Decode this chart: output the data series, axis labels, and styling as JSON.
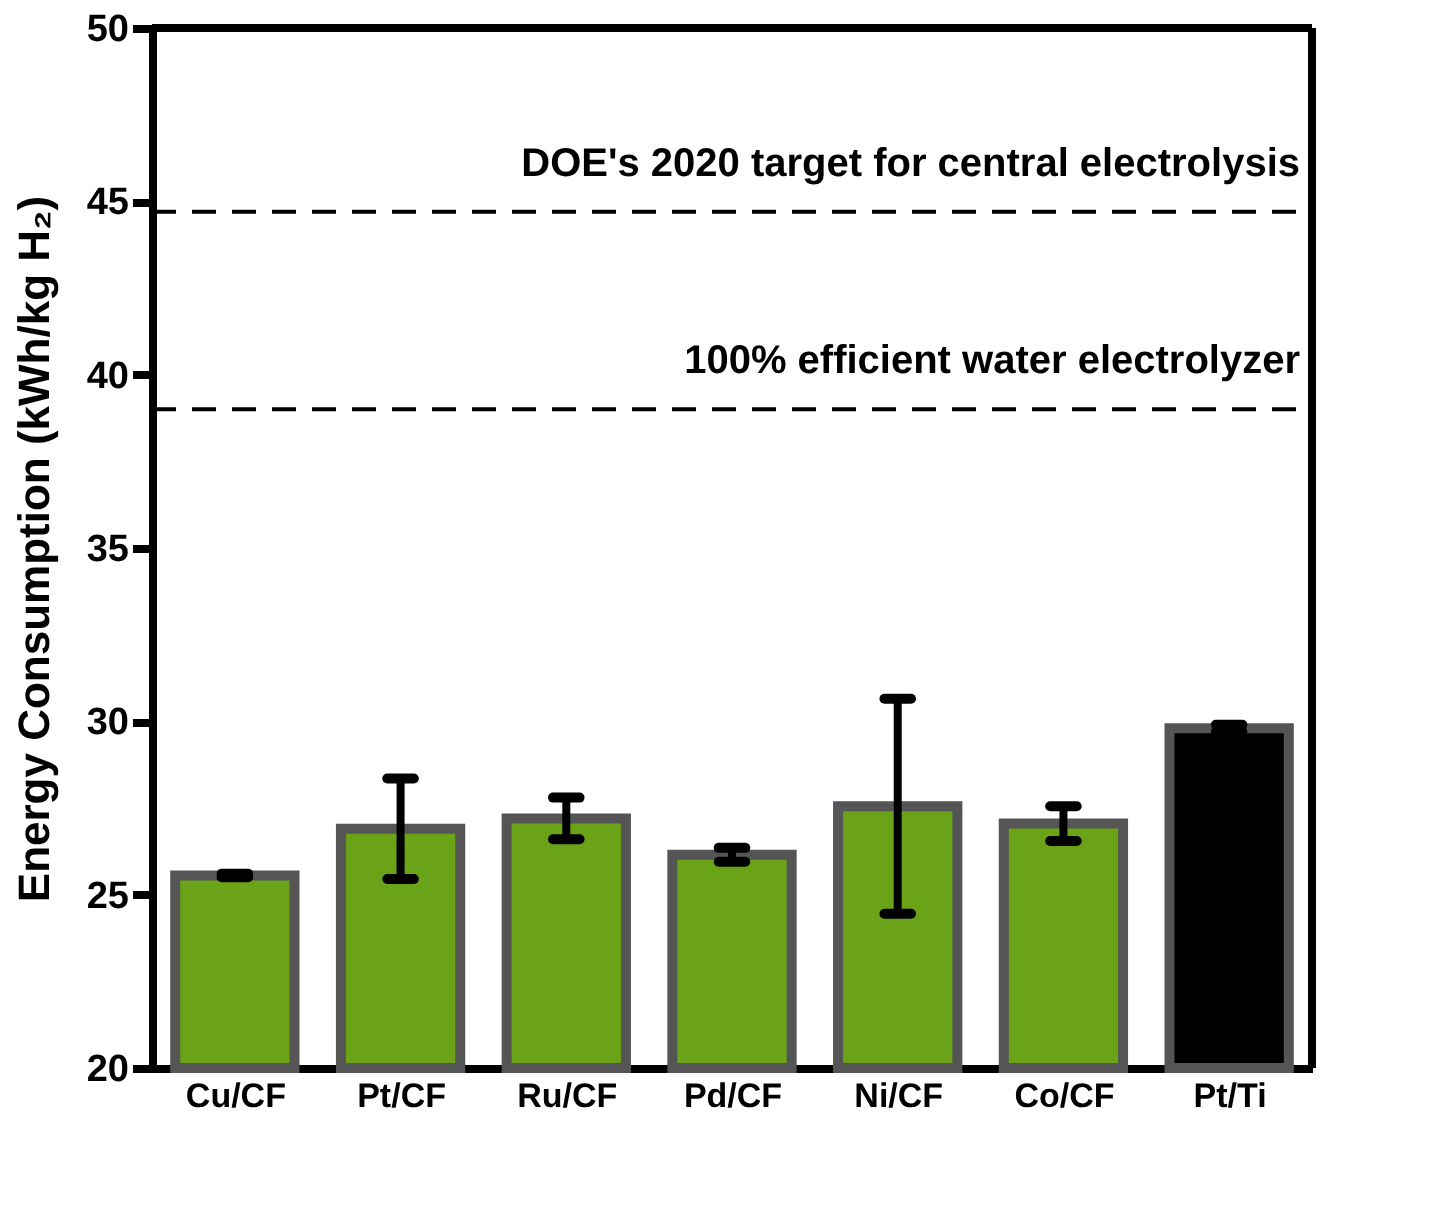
{
  "chart_data": {
    "type": "bar",
    "ylabel": "Energy Consumption (kWh/kg H₂)",
    "categories": [
      "Cu/CF",
      "Pt/CF",
      "Ru/CF",
      "Pd/CF",
      "Ni/CF",
      "Co/CF",
      "Pt/Ti"
    ],
    "values": [
      25.55,
      26.9,
      27.2,
      26.15,
      27.55,
      27.05,
      29.8
    ],
    "errors": [
      0.05,
      1.45,
      0.6,
      0.2,
      3.1,
      0.5,
      0.1
    ],
    "colors": [
      "#6aa317",
      "#6aa317",
      "#6aa317",
      "#6aa317",
      "#6aa317",
      "#6aa317",
      "#000000"
    ],
    "ylim": [
      20,
      50
    ],
    "yticks": [
      20,
      25,
      30,
      35,
      40,
      45,
      50
    ],
    "grid": false,
    "ref_lines": [
      {
        "axis": "y",
        "value": 44.7,
        "label": "DOE's 2020 target for central electrolysis",
        "line_style": "dashed",
        "color": "#000000"
      },
      {
        "axis": "y",
        "value": 39.0,
        "label": "100% efficient water electrolyzer",
        "line_style": "dashed",
        "color": "#000000"
      }
    ]
  }
}
